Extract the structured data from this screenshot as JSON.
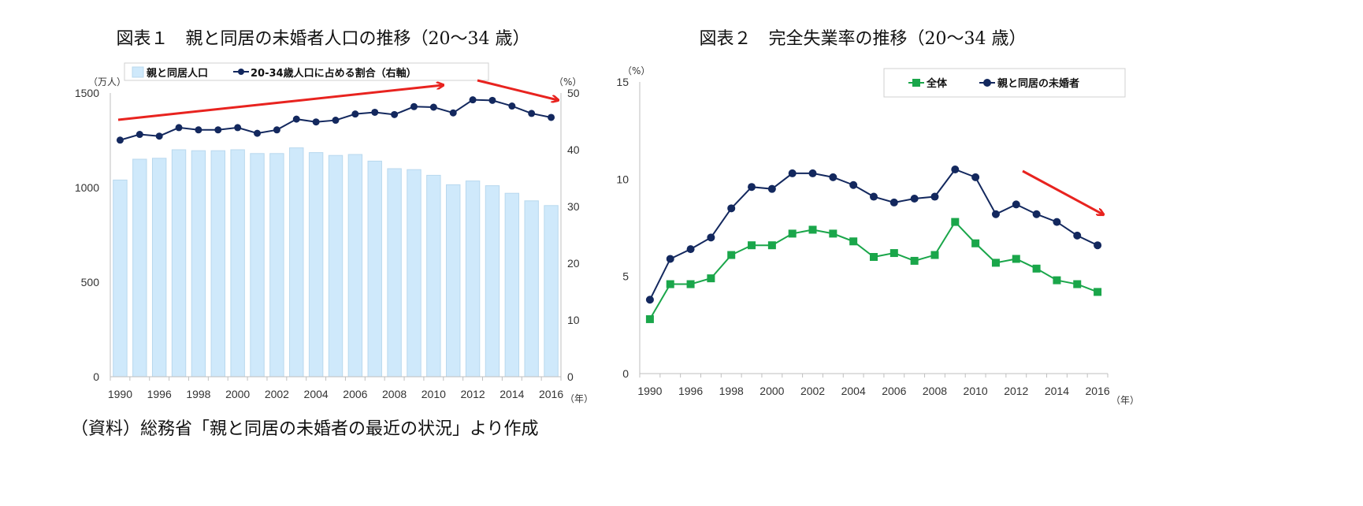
{
  "chart_data": [
    {
      "type": "bar+line",
      "title": "図表１　親と同居の未婚者人口の推移（20～34 歳）",
      "categories": [
        1990,
        1995,
        1996,
        1997,
        1998,
        1999,
        2000,
        2001,
        2002,
        2003,
        2004,
        2005,
        2006,
        2007,
        2008,
        2009,
        2010,
        2011,
        2012,
        2013,
        2014,
        2015,
        2016
      ],
      "tick_labels": [
        "1990",
        "1996",
        "1998",
        "2000",
        "2002",
        "2004",
        "2006",
        "2008",
        "2010",
        "2012",
        "2014",
        "2016"
      ],
      "xunit": "（年）",
      "yunit_left": "（万人）",
      "yunit_right": "（%）",
      "ylim_left": [
        0,
        1500
      ],
      "yticks_left": [
        "0",
        "500",
        "1000",
        "1500"
      ],
      "ylim_right": [
        0,
        50
      ],
      "yticks_right": [
        "0",
        "10",
        "20",
        "30",
        "40",
        "50"
      ],
      "legend_position": "top",
      "series": [
        {
          "name": "親と同居人口",
          "type": "bar",
          "axis": "left",
          "color": "#cfe9fb",
          "values": [
            1040,
            1150,
            1155,
            1200,
            1195,
            1195,
            1200,
            1180,
            1180,
            1210,
            1185,
            1170,
            1175,
            1140,
            1100,
            1095,
            1065,
            1015,
            1035,
            1010,
            970,
            930,
            905
          ]
        },
        {
          "name": "20-34歳人口に占める割合（右軸）",
          "type": "line",
          "axis": "right",
          "color": "#13285e",
          "values": [
            41.7,
            42.7,
            42.4,
            43.9,
            43.5,
            43.5,
            43.9,
            42.9,
            43.5,
            45.4,
            44.9,
            45.2,
            46.3,
            46.6,
            46.2,
            47.6,
            47.5,
            46.5,
            48.8,
            48.7,
            47.7,
            46.4,
            45.7
          ]
        }
      ],
      "annotations": [
        "red arrow: upward trend 1990-2010",
        "red arrow: downward trend 2012-2016"
      ]
    },
    {
      "type": "line",
      "title": "図表２　完全失業率の推移（20～34 歳）",
      "categories": [
        1990,
        1995,
        1996,
        1997,
        1998,
        1999,
        2000,
        2001,
        2002,
        2003,
        2004,
        2005,
        2006,
        2007,
        2008,
        2009,
        2010,
        2011,
        2012,
        2013,
        2014,
        2015,
        2016
      ],
      "tick_labels": [
        "1990",
        "1996",
        "1998",
        "2000",
        "2002",
        "2004",
        "2006",
        "2008",
        "2010",
        "2012",
        "2014",
        "2016"
      ],
      "xunit": "（年）",
      "yunit": "（%）",
      "ylim": [
        0,
        15
      ],
      "yticks": [
        "0",
        "5",
        "10",
        "15"
      ],
      "legend_position": "top-right",
      "series": [
        {
          "name": "全体",
          "marker": "square",
          "color": "#1aa64a",
          "values": [
            2.8,
            4.6,
            4.6,
            4.9,
            6.1,
            6.6,
            6.6,
            7.2,
            7.4,
            7.2,
            6.8,
            6.0,
            6.2,
            5.8,
            6.1,
            7.8,
            6.7,
            5.7,
            5.9,
            5.4,
            4.8,
            4.6,
            4.2
          ]
        },
        {
          "name": "親と同居の未婚者",
          "marker": "circle",
          "color": "#13285e",
          "values": [
            3.8,
            5.9,
            6.4,
            7.0,
            8.5,
            9.6,
            9.5,
            10.3,
            10.3,
            10.1,
            9.7,
            9.1,
            8.8,
            9.0,
            9.1,
            10.5,
            10.1,
            8.2,
            8.7,
            8.2,
            7.8,
            7.1,
            6.6
          ]
        }
      ],
      "annotations": [
        "red arrow: downward trend 2012-2016"
      ]
    }
  ],
  "source": "（資料）総務省「親と同居の未婚者の最近の状況」より作成",
  "colors": {
    "arrow": "#e8231f",
    "axis": "#bfbfbf"
  }
}
